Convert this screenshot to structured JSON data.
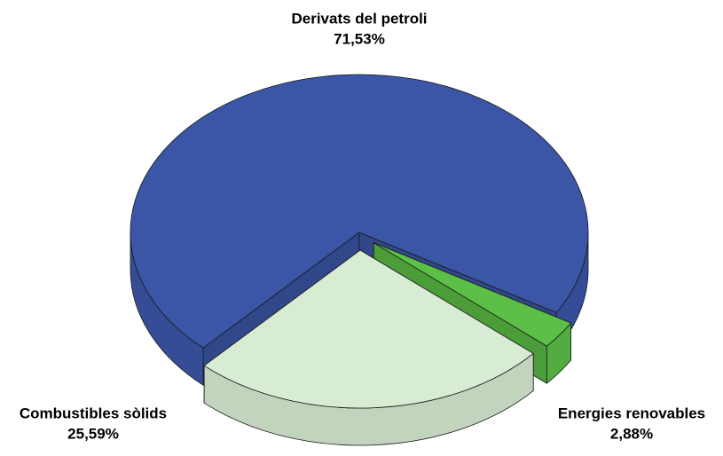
{
  "chart_data": {
    "type": "pie",
    "categories": [
      "Derivats del petroli",
      "Combustibles sòlids",
      "Energies renovables"
    ],
    "values": [
      71.53,
      25.59,
      2.88
    ],
    "value_labels": [
      "71,53%",
      "25,59%",
      "2,88%"
    ],
    "colors": [
      "#3b56a7",
      "#d8ebd3",
      "#5cbf47"
    ]
  }
}
